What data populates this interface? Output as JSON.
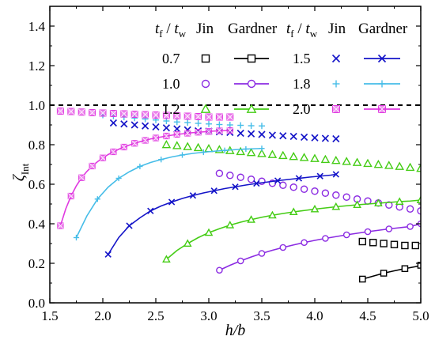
{
  "chart_data": {
    "type": "scatter",
    "xlabel": "h/b",
    "ylabel": "ζInt",
    "ylabel_base": "ζ",
    "ylabel_sub": "Int",
    "xlim": [
      1.5,
      5.0
    ],
    "ylim": [
      0.0,
      1.5
    ],
    "x_ticks": [
      "1.5",
      "2.0",
      "2.5",
      "3.0",
      "3.5",
      "4.0",
      "4.5",
      "5.0"
    ],
    "y_ticks": [
      "0.0",
      "0.2",
      "0.4",
      "0.6",
      "0.8",
      "1.0",
      "1.2",
      "1.4"
    ],
    "reference_line": {
      "y": 1.0,
      "style": "dashed"
    },
    "legend": {
      "placement": "top-right",
      "header_param": "tf / tw",
      "header_param_t1": "t",
      "header_param_s1": "f",
      "header_param_sep": " / ",
      "header_param_t2": "t",
      "header_param_s2": "w",
      "header_jin": "Jin",
      "header_gardner": "Gardner"
    },
    "series": [
      {
        "ratio": "0.7",
        "color": "#000000",
        "marker": "square-open",
        "jin": {
          "x": [
            4.45,
            4.55,
            4.65,
            4.75,
            4.85,
            4.95
          ],
          "y": [
            0.31,
            0.305,
            0.3,
            0.295,
            0.29,
            0.29
          ]
        },
        "gardner": {
          "x": [
            4.45,
            4.55,
            4.65,
            4.75,
            4.85,
            4.95,
            5.0
          ],
          "y": [
            0.12,
            0.135,
            0.15,
            0.162,
            0.173,
            0.183,
            0.19
          ]
        }
      },
      {
        "ratio": "1.0",
        "color": "#8b2be2",
        "marker": "circle-open",
        "jin": {
          "x": [
            3.1,
            3.2,
            3.3,
            3.4,
            3.5,
            3.6,
            3.7,
            3.8,
            3.9,
            4.0,
            4.1,
            4.2,
            4.3,
            4.4,
            4.5,
            4.6,
            4.7,
            4.8,
            4.9,
            5.0
          ],
          "y": [
            0.655,
            0.645,
            0.635,
            0.625,
            0.615,
            0.605,
            0.595,
            0.585,
            0.575,
            0.565,
            0.555,
            0.545,
            0.535,
            0.525,
            0.515,
            0.505,
            0.495,
            0.485,
            0.475,
            0.465
          ]
        },
        "gardner": {
          "x": [
            3.1,
            3.2,
            3.3,
            3.4,
            3.5,
            3.6,
            3.7,
            3.8,
            3.9,
            4.0,
            4.1,
            4.2,
            4.3,
            4.4,
            4.5,
            4.6,
            4.7,
            4.8,
            4.9,
            5.0
          ],
          "y": [
            0.165,
            0.19,
            0.212,
            0.232,
            0.25,
            0.266,
            0.28,
            0.293,
            0.305,
            0.316,
            0.326,
            0.335,
            0.344,
            0.352,
            0.36,
            0.367,
            0.374,
            0.38,
            0.386,
            0.4
          ]
        }
      },
      {
        "ratio": "1.2",
        "color": "#44cc14",
        "marker": "triangle-open",
        "jin": {
          "x": [
            2.6,
            2.7,
            2.8,
            2.9,
            3.0,
            3.1,
            3.2,
            3.3,
            3.4,
            3.5,
            3.6,
            3.7,
            3.8,
            3.9,
            4.0,
            4.1,
            4.2,
            4.3,
            4.4,
            4.5,
            4.6,
            4.7,
            4.8,
            4.9,
            5.0
          ],
          "y": [
            0.8,
            0.795,
            0.79,
            0.785,
            0.78,
            0.775,
            0.77,
            0.765,
            0.76,
            0.755,
            0.75,
            0.745,
            0.74,
            0.735,
            0.73,
            0.725,
            0.72,
            0.715,
            0.71,
            0.705,
            0.7,
            0.695,
            0.69,
            0.685,
            0.68
          ]
        },
        "gardner": {
          "x": [
            2.6,
            2.7,
            2.8,
            2.9,
            3.0,
            3.1,
            3.2,
            3.3,
            3.4,
            3.5,
            3.6,
            3.7,
            3.8,
            3.9,
            4.0,
            4.1,
            4.2,
            4.3,
            4.4,
            4.5,
            4.6,
            4.7,
            4.8,
            4.9,
            5.0
          ],
          "y": [
            0.22,
            0.265,
            0.3,
            0.33,
            0.355,
            0.375,
            0.393,
            0.408,
            0.421,
            0.433,
            0.443,
            0.452,
            0.46,
            0.467,
            0.474,
            0.48,
            0.486,
            0.491,
            0.496,
            0.5,
            0.504,
            0.508,
            0.512,
            0.515,
            0.52
          ]
        }
      },
      {
        "ratio": "1.5",
        "color": "#1414c8",
        "marker": "x",
        "jin": {
          "x": [
            2.1,
            2.2,
            2.3,
            2.4,
            2.5,
            2.6,
            2.7,
            2.8,
            2.9,
            3.0,
            3.1,
            3.2,
            3.3,
            3.4,
            3.5,
            3.6,
            3.7,
            3.8,
            3.9,
            4.0,
            4.1,
            4.2
          ],
          "y": [
            0.91,
            0.905,
            0.9,
            0.895,
            0.89,
            0.885,
            0.88,
            0.875,
            0.87,
            0.868,
            0.865,
            0.862,
            0.858,
            0.855,
            0.852,
            0.848,
            0.845,
            0.842,
            0.838,
            0.835,
            0.832,
            0.83
          ]
        },
        "gardner": {
          "x": [
            2.05,
            2.15,
            2.25,
            2.35,
            2.45,
            2.55,
            2.65,
            2.75,
            2.85,
            2.95,
            3.05,
            3.15,
            3.25,
            3.35,
            3.45,
            3.55,
            3.65,
            3.75,
            3.85,
            3.95,
            4.05,
            4.15,
            4.2
          ],
          "y": [
            0.245,
            0.33,
            0.39,
            0.43,
            0.465,
            0.49,
            0.51,
            0.528,
            0.543,
            0.556,
            0.567,
            0.578,
            0.587,
            0.596,
            0.604,
            0.611,
            0.618,
            0.624,
            0.63,
            0.636,
            0.641,
            0.646,
            0.65
          ]
        }
      },
      {
        "ratio": "1.8",
        "color": "#46bde8",
        "marker": "plus",
        "jin": {
          "x": [
            2.0,
            2.1,
            2.2,
            2.3,
            2.4,
            2.5,
            2.6,
            2.7,
            2.8,
            2.9,
            3.0,
            3.1,
            3.2,
            3.3,
            3.4,
            3.5
          ],
          "y": [
            0.95,
            0.945,
            0.94,
            0.935,
            0.93,
            0.925,
            0.92,
            0.915,
            0.912,
            0.908,
            0.905,
            0.902,
            0.9,
            0.898,
            0.896,
            0.895
          ]
        },
        "gardner": {
          "x": [
            1.75,
            1.85,
            1.95,
            2.05,
            2.15,
            2.25,
            2.35,
            2.45,
            2.55,
            2.65,
            2.75,
            2.85,
            2.95,
            3.05,
            3.15,
            3.25,
            3.35,
            3.45,
            3.5
          ],
          "y": [
            0.33,
            0.44,
            0.525,
            0.585,
            0.63,
            0.663,
            0.69,
            0.71,
            0.725,
            0.738,
            0.748,
            0.756,
            0.762,
            0.767,
            0.771,
            0.775,
            0.778,
            0.78,
            0.781
          ]
        }
      },
      {
        "ratio": "2.0",
        "color": "#e038e0",
        "marker": "square-x",
        "jin": {
          "x": [
            1.6,
            1.7,
            1.8,
            1.9,
            2.0,
            2.1,
            2.2,
            2.3,
            2.4,
            2.5,
            2.6,
            2.7,
            2.8,
            2.9,
            3.0,
            3.1,
            3.2
          ],
          "y": [
            0.97,
            0.968,
            0.965,
            0.962,
            0.96,
            0.958,
            0.956,
            0.954,
            0.952,
            0.95,
            0.948,
            0.946,
            0.944,
            0.942,
            0.94,
            0.94,
            0.94
          ]
        },
        "gardner": {
          "x": [
            1.6,
            1.65,
            1.7,
            1.75,
            1.8,
            1.85,
            1.9,
            1.95,
            2.0,
            2.05,
            2.1,
            2.15,
            2.2,
            2.25,
            2.3,
            2.35,
            2.4,
            2.45,
            2.5,
            2.55,
            2.6,
            2.65,
            2.7,
            2.75,
            2.8,
            2.85,
            2.9,
            2.95,
            3.0,
            3.05,
            3.1,
            3.15,
            3.2
          ],
          "y": [
            0.39,
            0.475,
            0.54,
            0.592,
            0.633,
            0.665,
            0.692,
            0.714,
            0.733,
            0.75,
            0.764,
            0.777,
            0.788,
            0.798,
            0.807,
            0.815,
            0.822,
            0.829,
            0.834,
            0.839,
            0.844,
            0.848,
            0.852,
            0.855,
            0.858,
            0.861,
            0.863,
            0.865,
            0.867,
            0.869,
            0.87,
            0.871,
            0.872
          ]
        }
      }
    ]
  }
}
